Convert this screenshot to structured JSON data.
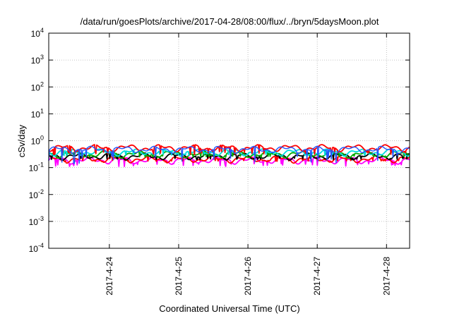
{
  "chart_data": {
    "type": "line",
    "title": "/data/run/goesPlots/archive/2017-04-28/08:00/flux/../bryn/5daysMoon.plot",
    "xlabel": "Coordinated Universal Time (UTC)",
    "ylabel": "cSv/day",
    "yscale": "log",
    "ylim": [
      0.0001,
      10000
    ],
    "yticks": [
      {
        "base": "10",
        "exp": "-4",
        "value": 0.0001
      },
      {
        "base": "10",
        "exp": "-3",
        "value": 0.001
      },
      {
        "base": "10",
        "exp": "-2",
        "value": 0.01
      },
      {
        "base": "10",
        "exp": "-1",
        "value": 0.1
      },
      {
        "base": "10",
        "exp": "0",
        "value": 1
      },
      {
        "base": "10",
        "exp": "1",
        "value": 10
      },
      {
        "base": "10",
        "exp": "2",
        "value": 100
      },
      {
        "base": "10",
        "exp": "3",
        "value": 1000
      },
      {
        "base": "10",
        "exp": "4",
        "value": 10000
      }
    ],
    "xlim": [
      "2017-04-23T03:00",
      "2017-04-28T08:00"
    ],
    "xticks": [
      "2017-4-24",
      "2017-4-25",
      "2017-4-26",
      "2017-4-27",
      "2017-4-28"
    ],
    "grid": true,
    "series": [
      {
        "color": "#ff00ff",
        "base": 0.19,
        "dip": 0.11
      },
      {
        "color": "#ff0000",
        "base": 0.21,
        "dip": 0.17
      },
      {
        "color": "#000000",
        "base": 0.27,
        "dip": 0.2
      },
      {
        "color": "#00aa00",
        "base": 0.32,
        "dip": 0.24
      },
      {
        "color": "#00dddd",
        "base": 0.38,
        "dip": 0.28
      },
      {
        "color": "#ff0000",
        "base": 0.55,
        "dip": 0.3
      },
      {
        "color": "#2255ff",
        "base": 0.48,
        "dip": 0.14
      }
    ]
  }
}
